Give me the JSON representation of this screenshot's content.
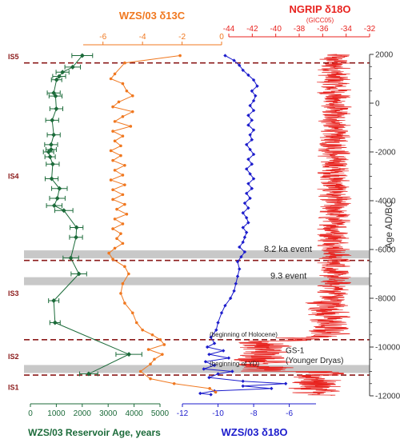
{
  "chart_data": {
    "type": "line",
    "age_axis": {
      "label": "Age AD/BC",
      "range": [
        2000,
        -12000
      ],
      "ticks": [
        2000,
        0,
        -2000,
        -4000,
        -6000,
        -8000,
        -10000,
        -12000
      ],
      "tick_labels": [
        "2000",
        "0",
        "-2000",
        "-4000",
        "-6000",
        "-8000",
        "-10000",
        "-12000"
      ]
    },
    "axes": {
      "d13c": {
        "label": "WZS/03",
        "symbol": "δ13C",
        "label_text": "WZS/03  δ13C",
        "color": "#f07820",
        "range": [
          -7,
          0
        ],
        "ticks": [
          -6,
          -4,
          -2,
          0
        ],
        "tick_labels": [
          "-6",
          "-4",
          "-2",
          "0"
        ]
      },
      "ngrip": {
        "label": "NGRIP",
        "symbol": "δ18O",
        "label_text": "NGRIP  δ18O",
        "sublabel": "(GICC05)",
        "color": "#e8231f",
        "range": [
          -44,
          -32
        ],
        "ticks": [
          -44,
          -42,
          -40,
          -38,
          -36,
          -34,
          -32
        ],
        "tick_labels": [
          "-44",
          "-42",
          "-40",
          "-38",
          "-36",
          "-34",
          "-32"
        ]
      },
      "reservoir": {
        "label": "WZS/03 Reservoir Age, years",
        "color": "#1c6b3a",
        "range": [
          0,
          5000
        ],
        "ticks": [
          0,
          1000,
          2000,
          3000,
          4000,
          5000
        ],
        "tick_labels": [
          "0",
          "1000",
          "2000",
          "3000",
          "4000",
          "5000"
        ]
      },
      "d18o": {
        "label": "WZS/03",
        "symbol": "δ18O",
        "label_text": "WZS/03  δ18O",
        "color": "#1c1ccc",
        "range": [
          -12,
          -4.5
        ],
        "ticks": [
          -12,
          -10,
          -8,
          -6
        ],
        "tick_labels": [
          "-12",
          "-10",
          "-8",
          "-6"
        ]
      }
    },
    "stages": [
      {
        "label": "IS5",
        "age": 1900
      },
      {
        "label": "IS4",
        "age": -3000
      },
      {
        "label": "IS3",
        "age": -7800
      },
      {
        "label": "IS2",
        "age": -10400
      },
      {
        "label": "IS1",
        "age": -11650
      }
    ],
    "boundaries": [
      1650,
      -6450,
      -9700,
      -11150
    ],
    "events": [
      {
        "label": "8.2 ka event",
        "age": -6200
      },
      {
        "label": "9.3 event",
        "age": -7300
      },
      {
        "label": "(beginning of Holocene)",
        "age": -9700
      },
      {
        "label": "(beginning of YD)",
        "age": -10900
      }
    ],
    "annotations": [
      {
        "text": "GS-1",
        "age": -10150
      },
      {
        "text": "(Younger Dryas)",
        "age": -10550
      }
    ],
    "series": [
      {
        "name": "WZS/03 Reservoir Age",
        "axis": "reservoir",
        "color": "#1c6b3a",
        "points": [
          [
            1950,
            2000
          ],
          [
            1480,
            1630
          ],
          [
            1270,
            1240
          ],
          [
            1100,
            1110
          ],
          [
            960,
            1010
          ],
          [
            420,
            900
          ],
          [
            290,
            970
          ],
          [
            -230,
            1000
          ],
          [
            -700,
            840
          ],
          [
            -1300,
            900
          ],
          [
            -1700,
            800
          ],
          [
            -1900,
            800
          ],
          [
            -2000,
            700
          ],
          [
            -2200,
            760
          ],
          [
            -2500,
            860
          ],
          [
            -3100,
            820
          ],
          [
            -3500,
            1120
          ],
          [
            -3900,
            1040
          ],
          [
            -4200,
            920
          ],
          [
            -4400,
            1290
          ],
          [
            -5100,
            1780
          ],
          [
            -5500,
            1760
          ],
          [
            -6350,
            1560
          ],
          [
            -7000,
            1870
          ],
          [
            -8100,
            900
          ],
          [
            -9000,
            950
          ],
          [
            -10300,
            3800
          ],
          [
            -11100,
            2250
          ]
        ],
        "errors": [
          400,
          300,
          250,
          250,
          200,
          250,
          250,
          250,
          250,
          250,
          250,
          200,
          200,
          200,
          250,
          250,
          300,
          300,
          300,
          350,
          250,
          250,
          300,
          300,
          200,
          200,
          500,
          350
        ]
      },
      {
        "name": "WZS/03 δ13C",
        "axis": "d13c",
        "color": "#f07820",
        "points": [
          [
            1950,
            -2.1
          ],
          [
            1650,
            -4.9
          ],
          [
            1200,
            -5.4
          ],
          [
            1000,
            -5.6
          ],
          [
            800,
            -5.0
          ],
          [
            500,
            -4.8
          ],
          [
            300,
            -4.5
          ],
          [
            50,
            -5.2
          ],
          [
            -150,
            -5.5
          ],
          [
            -350,
            -4.5
          ],
          [
            -550,
            -5.0
          ],
          [
            -750,
            -5.4
          ],
          [
            -950,
            -4.6
          ],
          [
            -1150,
            -5.5
          ],
          [
            -1350,
            -5.0
          ],
          [
            -1550,
            -5.4
          ],
          [
            -1750,
            -5.1
          ],
          [
            -1950,
            -5.6
          ],
          [
            -2150,
            -5.1
          ],
          [
            -2350,
            -5.5
          ],
          [
            -2550,
            -4.9
          ],
          [
            -2750,
            -5.4
          ],
          [
            -2950,
            -5.0
          ],
          [
            -3150,
            -5.6
          ],
          [
            -3350,
            -4.9
          ],
          [
            -3550,
            -5.5
          ],
          [
            -3750,
            -5.0
          ],
          [
            -3950,
            -5.5
          ],
          [
            -4150,
            -4.9
          ],
          [
            -4350,
            -5.3
          ],
          [
            -4550,
            -4.8
          ],
          [
            -4750,
            -5.4
          ],
          [
            -4950,
            -5.0
          ],
          [
            -5150,
            -5.5
          ],
          [
            -5350,
            -5.1
          ],
          [
            -5550,
            -5.3
          ],
          [
            -5750,
            -5.0
          ],
          [
            -5950,
            -5.4
          ],
          [
            -6150,
            -5.7
          ],
          [
            -6400,
            -5.5
          ],
          [
            -6700,
            -4.9
          ],
          [
            -7000,
            -4.7
          ],
          [
            -7400,
            -5.0
          ],
          [
            -7800,
            -5.1
          ],
          [
            -8200,
            -4.9
          ],
          [
            -8600,
            -4.5
          ],
          [
            -9000,
            -4.3
          ],
          [
            -9300,
            -4.0
          ],
          [
            -9500,
            -3.5
          ],
          [
            -9700,
            -3.1
          ],
          [
            -9900,
            -2.9
          ],
          [
            -10100,
            -3.7
          ],
          [
            -10300,
            -3.0
          ],
          [
            -10500,
            -3.4
          ],
          [
            -10700,
            -3.6
          ],
          [
            -11000,
            -4.1
          ],
          [
            -11300,
            -3.6
          ],
          [
            -11500,
            -2.4
          ],
          [
            -11700,
            -0.6
          ],
          [
            -11850,
            -0.3
          ]
        ]
      },
      {
        "name": "WZS/03 δ18O",
        "axis": "d18o",
        "color": "#1c1ccc",
        "points": [
          [
            1950,
            -9.6
          ],
          [
            1750,
            -9.1
          ],
          [
            1550,
            -8.8
          ],
          [
            1350,
            -8.6
          ],
          [
            1150,
            -8.3
          ],
          [
            950,
            -8.0
          ],
          [
            700,
            -7.8
          ],
          [
            500,
            -8.1
          ],
          [
            300,
            -7.9
          ],
          [
            100,
            -8.0
          ],
          [
            -100,
            -8.2
          ],
          [
            -300,
            -8.0
          ],
          [
            -500,
            -8.3
          ],
          [
            -700,
            -8.1
          ],
          [
            -900,
            -8.3
          ],
          [
            -1100,
            -8.0
          ],
          [
            -1300,
            -8.2
          ],
          [
            -1500,
            -8.1
          ],
          [
            -1700,
            -8.4
          ],
          [
            -1900,
            -8.2
          ],
          [
            -2100,
            -8.0
          ],
          [
            -2300,
            -8.3
          ],
          [
            -2500,
            -8.1
          ],
          [
            -2700,
            -8.4
          ],
          [
            -2900,
            -8.2
          ],
          [
            -3100,
            -8.0
          ],
          [
            -3300,
            -8.3
          ],
          [
            -3500,
            -8.1
          ],
          [
            -3700,
            -8.4
          ],
          [
            -3900,
            -8.2
          ],
          [
            -4100,
            -8.5
          ],
          [
            -4300,
            -8.3
          ],
          [
            -4500,
            -8.6
          ],
          [
            -4700,
            -8.4
          ],
          [
            -4900,
            -8.3
          ],
          [
            -5100,
            -8.6
          ],
          [
            -5300,
            -8.4
          ],
          [
            -5500,
            -8.5
          ],
          [
            -5700,
            -8.6
          ],
          [
            -5900,
            -8.8
          ],
          [
            -6100,
            -8.5
          ],
          [
            -6300,
            -8.7
          ],
          [
            -6500,
            -8.9
          ],
          [
            -6800,
            -8.8
          ],
          [
            -7100,
            -8.9
          ],
          [
            -7400,
            -9.0
          ],
          [
            -7700,
            -9.1
          ],
          [
            -8000,
            -9.3
          ],
          [
            -8300,
            -9.6
          ],
          [
            -8600,
            -9.8
          ],
          [
            -9000,
            -10.0
          ],
          [
            -9300,
            -10.1
          ],
          [
            -9600,
            -10.4
          ],
          [
            -9850,
            -10.2
          ],
          [
            -10000,
            -10.6
          ],
          [
            -10150,
            -9.7
          ],
          [
            -10300,
            -10.5
          ],
          [
            -10450,
            -9.4
          ],
          [
            -10600,
            -10.7
          ],
          [
            -10750,
            -10.2
          ],
          [
            -10900,
            -10.8
          ],
          [
            -11000,
            -9.2
          ],
          [
            -11100,
            -10.0
          ],
          [
            -11250,
            -10.5
          ],
          [
            -11400,
            -8.6
          ],
          [
            -11500,
            -6.2
          ],
          [
            -11600,
            -8.6
          ],
          [
            -11700,
            -7.0
          ],
          [
            -11800,
            -10.2
          ],
          [
            -11900,
            -11.0
          ],
          [
            -11950,
            -10.4
          ]
        ]
      },
      {
        "name": "NGRIP δ18O",
        "axis": "ngrip",
        "color": "#e8231f",
        "segments": [
          {
            "from": 2000,
            "to": -8000,
            "mean": -35.0,
            "noise": 0.7
          },
          {
            "from": -8000,
            "to": -9600,
            "mean": -35.5,
            "noise": 0.9
          },
          {
            "from": -9600,
            "to": -9750,
            "mean": -38.0,
            "noise": 1.0
          },
          {
            "from": -9750,
            "to": -11000,
            "mean": -41.0,
            "noise": 1.2
          },
          {
            "from": -11000,
            "to": -12000,
            "mean": -36.5,
            "noise": 1.1
          }
        ]
      }
    ]
  }
}
